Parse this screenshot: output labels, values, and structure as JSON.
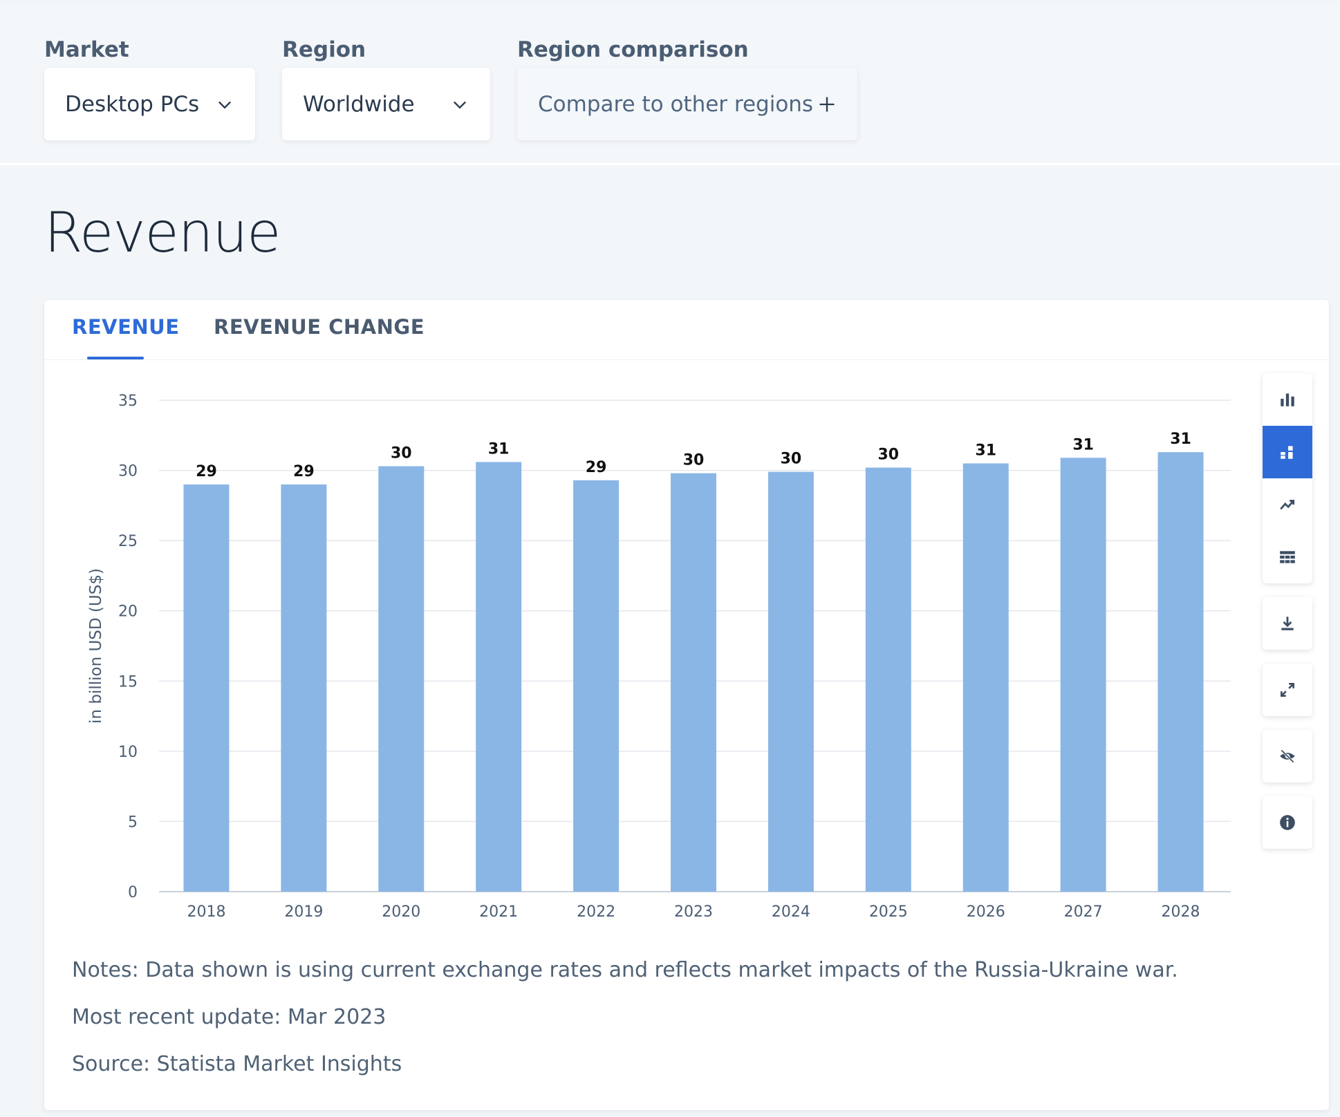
{
  "filters": {
    "market": {
      "label": "Market",
      "value": "Desktop PCs"
    },
    "region": {
      "label": "Region",
      "value": "Worldwide"
    },
    "comparison": {
      "label": "Region comparison",
      "value": "Compare to other regions"
    }
  },
  "page_title": "Revenue",
  "tabs": [
    {
      "label": "REVENUE",
      "active": true
    },
    {
      "label": "REVENUE CHANGE",
      "active": false
    }
  ],
  "colors": {
    "accent": "#2e6bd8",
    "bar": "#8ab6e6"
  },
  "toolbar_icons": [
    "bar-chart-icon",
    "stacked-bar-icon",
    "trend-line-icon",
    "table-icon",
    "download-icon",
    "expand-icon",
    "hide-icon",
    "info-icon"
  ],
  "chart_data": {
    "type": "bar",
    "categories": [
      "2018",
      "2019",
      "2020",
      "2021",
      "2022",
      "2023",
      "2024",
      "2025",
      "2026",
      "2027",
      "2028"
    ],
    "values": [
      29.0,
      29.0,
      30.3,
      30.6,
      29.3,
      29.8,
      29.9,
      30.2,
      30.5,
      30.9,
      31.3
    ],
    "labels": [
      "29",
      "29",
      "30",
      "31",
      "29",
      "30",
      "30",
      "30",
      "31",
      "31",
      "31"
    ],
    "ylabel": "in billion USD (US$)",
    "ylim": [
      0,
      35
    ],
    "yticks": [
      0,
      5,
      10,
      15,
      20,
      25,
      30,
      35
    ],
    "grid": true
  },
  "notes": {
    "note": "Notes: Data shown is using current exchange rates and reflects market impacts of the Russia-Ukraine war.",
    "update": "Most recent update: Mar 2023",
    "source": "Source: Statista Market Insights"
  }
}
